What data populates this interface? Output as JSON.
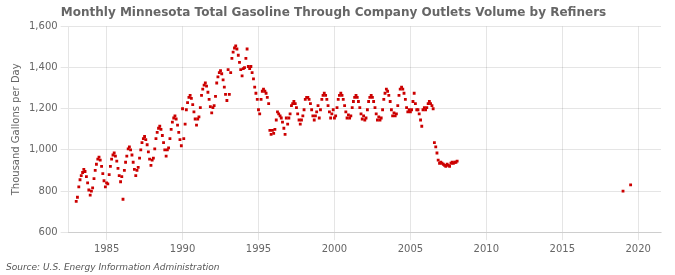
{
  "chart_data": {
    "type": "scatter",
    "title": "Monthly Minnesota Total Gasoline Through Company Outlets Volume by Refiners",
    "y_label": "Thousand Gallons per Day",
    "source": "Source: U.S. Energy Information Administration",
    "xlim": [
      1982.5,
      2021.5
    ],
    "ylim": [
      600,
      1600
    ],
    "xticks": [
      1985,
      1990,
      1995,
      2000,
      2005,
      2010,
      2015,
      2020
    ],
    "yticks": [
      600,
      800,
      {
        "value": 1000,
        "label": "1,000"
      },
      {
        "value": 1200,
        "label": "1,200"
      },
      {
        "value": 1400,
        "label": "1,400"
      },
      {
        "value": 1600,
        "label": "1,600"
      }
    ],
    "grid": true,
    "color": "#cc0000",
    "marker": "square",
    "x": [
      1983.0,
      1983.08,
      1983.17,
      1983.25,
      1983.33,
      1983.42,
      1983.5,
      1983.58,
      1983.67,
      1983.75,
      1983.83,
      1983.92,
      1984.0,
      1984.08,
      1984.17,
      1984.25,
      1984.33,
      1984.42,
      1984.5,
      1984.58,
      1984.67,
      1984.75,
      1984.83,
      1984.92,
      1985.0,
      1985.08,
      1985.17,
      1985.25,
      1985.33,
      1985.42,
      1985.5,
      1985.58,
      1985.67,
      1985.75,
      1985.83,
      1985.92,
      1986.0,
      1986.08,
      1986.17,
      1986.25,
      1986.33,
      1986.42,
      1986.5,
      1986.58,
      1986.67,
      1986.75,
      1986.83,
      1986.92,
      1987.0,
      1987.08,
      1987.17,
      1987.25,
      1987.33,
      1987.42,
      1987.5,
      1987.58,
      1987.67,
      1987.75,
      1987.83,
      1987.92,
      1988.0,
      1988.08,
      1988.17,
      1988.25,
      1988.33,
      1988.42,
      1988.5,
      1988.58,
      1988.67,
      1988.75,
      1988.83,
      1988.92,
      1989.0,
      1989.08,
      1989.17,
      1989.25,
      1989.33,
      1989.42,
      1989.5,
      1989.58,
      1989.67,
      1989.75,
      1989.83,
      1989.92,
      1990.0,
      1990.08,
      1990.17,
      1990.25,
      1990.33,
      1990.42,
      1990.5,
      1990.58,
      1990.67,
      1990.75,
      1990.83,
      1990.92,
      1991.0,
      1991.08,
      1991.17,
      1991.25,
      1991.33,
      1991.42,
      1991.5,
      1991.58,
      1991.67,
      1991.75,
      1991.83,
      1991.92,
      1992.0,
      1992.08,
      1992.17,
      1992.25,
      1992.33,
      1992.42,
      1992.5,
      1992.58,
      1992.67,
      1992.75,
      1992.83,
      1992.92,
      1993.0,
      1993.08,
      1993.17,
      1993.25,
      1993.33,
      1993.42,
      1993.5,
      1993.58,
      1993.67,
      1993.75,
      1993.83,
      1993.92,
      1994.0,
      1994.08,
      1994.17,
      1994.25,
      1994.33,
      1994.42,
      1994.5,
      1994.58,
      1994.67,
      1994.75,
      1994.83,
      1994.92,
      1995.0,
      1995.08,
      1995.17,
      1995.25,
      1995.33,
      1995.42,
      1995.5,
      1995.58,
      1995.67,
      1995.75,
      1995.83,
      1995.92,
      1996.0,
      1996.08,
      1996.17,
      1996.25,
      1996.33,
      1996.42,
      1996.5,
      1996.58,
      1996.67,
      1996.75,
      1996.83,
      1996.92,
      1997.0,
      1997.08,
      1997.17,
      1997.25,
      1997.33,
      1997.42,
      1997.5,
      1997.58,
      1997.67,
      1997.75,
      1997.83,
      1997.92,
      1998.0,
      1998.08,
      1998.17,
      1998.25,
      1998.33,
      1998.42,
      1998.5,
      1998.58,
      1998.67,
      1998.75,
      1998.83,
      1998.92,
      1999.0,
      1999.08,
      1999.17,
      1999.25,
      1999.33,
      1999.42,
      1999.5,
      1999.58,
      1999.67,
      1999.75,
      1999.83,
      1999.92,
      2000.0,
      2000.08,
      2000.17,
      2000.25,
      2000.33,
      2000.42,
      2000.5,
      2000.58,
      2000.67,
      2000.75,
      2000.83,
      2000.92,
      2001.0,
      2001.08,
      2001.17,
      2001.25,
      2001.33,
      2001.42,
      2001.5,
      2001.58,
      2001.67,
      2001.75,
      2001.83,
      2001.92,
      2002.0,
      2002.08,
      2002.17,
      2002.25,
      2002.33,
      2002.42,
      2002.5,
      2002.58,
      2002.67,
      2002.75,
      2002.83,
      2002.92,
      2003.0,
      2003.08,
      2003.17,
      2003.25,
      2003.33,
      2003.42,
      2003.5,
      2003.58,
      2003.67,
      2003.75,
      2003.83,
      2003.92,
      2004.0,
      2004.08,
      2004.17,
      2004.25,
      2004.33,
      2004.42,
      2004.5,
      2004.58,
      2004.67,
      2004.75,
      2004.83,
      2004.92,
      2005.0,
      2005.08,
      2005.17,
      2005.25,
      2005.33,
      2005.42,
      2005.5,
      2005.58,
      2005.67,
      2005.75,
      2005.83,
      2005.92,
      2006.0,
      2006.08,
      2006.17,
      2006.25,
      2006.33,
      2006.42,
      2006.5,
      2006.58,
      2006.67,
      2006.75,
      2006.83,
      2006.92,
      2007.0,
      2007.08,
      2007.17,
      2007.25,
      2007.33,
      2007.42,
      2007.5,
      2007.58,
      2007.67,
      2007.75,
      2007.83,
      2007.92,
      2008.0,
      2008.08,
      2019.0,
      2019.5
    ],
    "values": [
      750,
      770,
      820,
      855,
      875,
      890,
      905,
      895,
      870,
      840,
      805,
      780,
      800,
      815,
      860,
      900,
      930,
      955,
      965,
      950,
      920,
      885,
      850,
      820,
      840,
      835,
      880,
      920,
      955,
      975,
      985,
      970,
      945,
      910,
      875,
      845,
      870,
      760,
      900,
      940,
      970,
      1005,
      1015,
      1000,
      975,
      940,
      905,
      875,
      900,
      915,
      960,
      1000,
      1035,
      1055,
      1065,
      1050,
      1025,
      990,
      955,
      925,
      950,
      960,
      1005,
      1055,
      1085,
      1105,
      1115,
      1100,
      1070,
      1035,
      1000,
      970,
      1000,
      1010,
      1055,
      1100,
      1135,
      1155,
      1165,
      1150,
      1120,
      1085,
      1050,
      1020,
      1200,
      1055,
      1125,
      1195,
      1230,
      1255,
      1265,
      1250,
      1220,
      1185,
      1150,
      1120,
      1150,
      1160,
      1205,
      1265,
      1295,
      1315,
      1325,
      1310,
      1280,
      1245,
      1210,
      1180,
      1205,
      1215,
      1260,
      1325,
      1355,
      1375,
      1385,
      1370,
      1340,
      1305,
      1270,
      1240,
      1390,
      1270,
      1375,
      1445,
      1475,
      1495,
      1505,
      1490,
      1460,
      1425,
      1390,
      1360,
      1395,
      1400,
      1445,
      1490,
      1405,
      1395,
      1405,
      1375,
      1345,
      1305,
      1275,
      1245,
      1195,
      1175,
      1245,
      1285,
      1295,
      1285,
      1275,
      1255,
      1225,
      1095,
      1075,
      1095,
      1080,
      1100,
      1145,
      1185,
      1175,
      1165,
      1155,
      1135,
      1105,
      1075,
      1155,
      1125,
      1155,
      1175,
      1215,
      1225,
      1235,
      1225,
      1205,
      1175,
      1145,
      1125,
      1145,
      1165,
      1195,
      1245,
      1255,
      1255,
      1245,
      1225,
      1195,
      1165,
      1145,
      1165,
      1185,
      1215,
      1155,
      1195,
      1245,
      1265,
      1275,
      1265,
      1245,
      1215,
      1185,
      1155,
      1175,
      1195,
      1155,
      1165,
      1205,
      1245,
      1265,
      1275,
      1265,
      1245,
      1215,
      1185,
      1155,
      1170,
      1155,
      1165,
      1205,
      1235,
      1255,
      1265,
      1255,
      1235,
      1205,
      1175,
      1150,
      1165,
      1145,
      1155,
      1195,
      1235,
      1255,
      1265,
      1255,
      1235,
      1205,
      1175,
      1145,
      1160,
      1145,
      1155,
      1195,
      1245,
      1275,
      1295,
      1285,
      1265,
      1235,
      1195,
      1165,
      1180,
      1165,
      1175,
      1215,
      1265,
      1295,
      1305,
      1295,
      1275,
      1245,
      1205,
      1185,
      1195,
      1185,
      1195,
      1235,
      1275,
      1225,
      1195,
      1195,
      1175,
      1145,
      1115,
      1195,
      1205,
      1195,
      1205,
      1225,
      1235,
      1225,
      1215,
      1200,
      1035,
      1015,
      985,
      950,
      935,
      940,
      935,
      930,
      925,
      920,
      930,
      925,
      920,
      935,
      940,
      935,
      940,
      940,
      945,
      800,
      830
    ]
  }
}
